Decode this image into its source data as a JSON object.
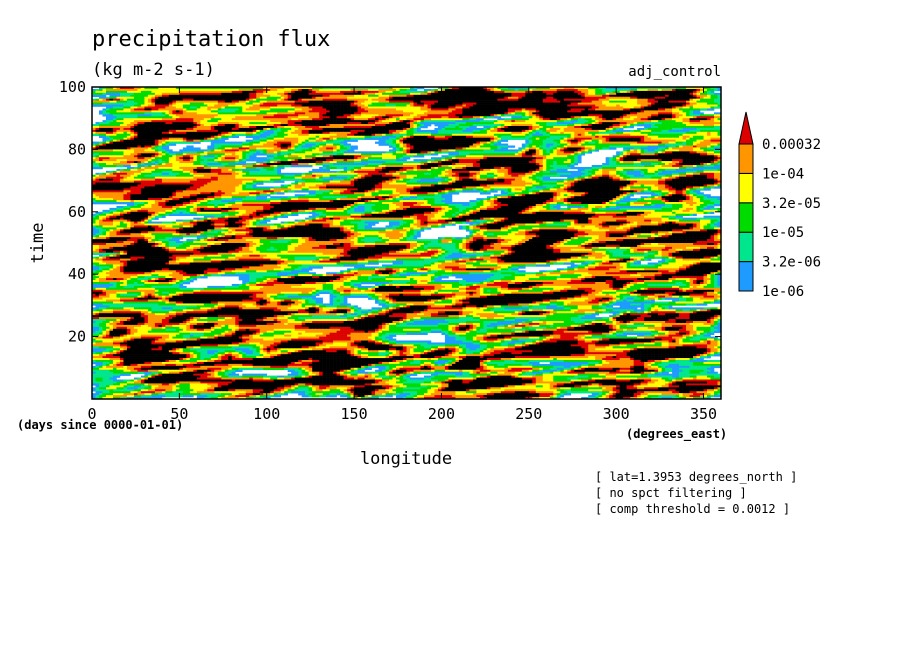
{
  "chart_data": {
    "type": "heatmap",
    "title": "precipitation flux",
    "subtitle": "(kg m-2 s-1)",
    "case_label": "adj_control",
    "xlabel": "longitude",
    "x_units": "(degrees_east)",
    "ylabel": "time",
    "y_units": "(days since 0000-01-01)",
    "xlim": [
      0,
      360
    ],
    "ylim": [
      0,
      100
    ],
    "x_ticks": [
      0,
      50,
      100,
      150,
      200,
      250,
      300,
      350
    ],
    "y_ticks": [
      20,
      40,
      60,
      80,
      100
    ],
    "colorbar": {
      "levels": [
        "1e-06",
        "3.2e-06",
        "1e-05",
        "3.2e-05",
        "1e-04",
        "0.00032"
      ],
      "colors": [
        "#1e9bff",
        "#00e68c",
        "#00dc00",
        "#ffff00",
        "#ff9600",
        "#dc0000"
      ]
    },
    "contour_color": "#000000",
    "notes": [
      "[ lat=1.3953 degrees_north ]",
      "[ no spct filtering ]",
      "[ comp threshold = 0.0012 ]"
    ]
  }
}
